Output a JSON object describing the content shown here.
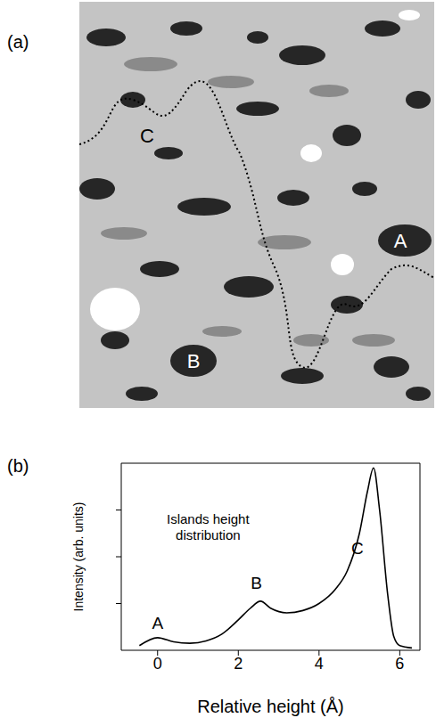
{
  "image": {
    "panel": "(a)",
    "annotations": [
      "C",
      "A",
      "B"
    ]
  },
  "chart_data": {
    "panel": "(b)",
    "type": "line",
    "x_label": "Relative height (Å)",
    "y_label": "Intensity (arb. units)",
    "x": [
      -0.45,
      0,
      0.4,
      0.8,
      1.2,
      1.6,
      2.0,
      2.3,
      2.55,
      2.8,
      3.2,
      3.6,
      4.0,
      4.4,
      4.7,
      5.0,
      5.2,
      5.35,
      5.5,
      5.7,
      5.85,
      6.0,
      6.3
    ],
    "values": [
      0.1,
      0.27,
      0.18,
      0.15,
      0.2,
      0.35,
      0.65,
      0.9,
      1.05,
      0.9,
      0.8,
      0.85,
      1.0,
      1.3,
      1.7,
      2.5,
      3.4,
      3.9,
      3.0,
      1.2,
      0.3,
      0.1,
      0.05
    ],
    "color": "#000000",
    "xlim": [
      -0.9,
      6.5
    ],
    "xticks": [
      0,
      2,
      4,
      6
    ],
    "ylim": [
      0,
      4
    ],
    "yticks": [
      1,
      2,
      3
    ],
    "tick_labels": "x",
    "annotations": [
      {
        "text": "A",
        "x": 0,
        "y": 0.6
      },
      {
        "text": "B",
        "x": 2.45,
        "y": 1.45
      },
      {
        "text": "C",
        "x": 4.95,
        "y": 2.2
      },
      {
        "text": "Islands height distribution",
        "x": 1.25,
        "y": 2.65
      }
    ]
  }
}
